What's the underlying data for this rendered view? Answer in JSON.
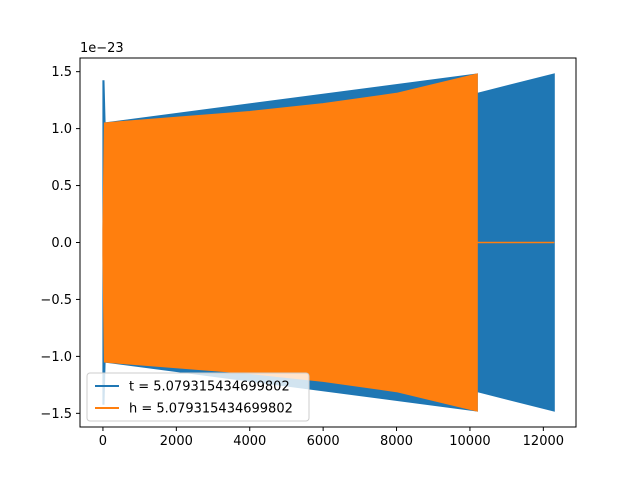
{
  "chart_data": {
    "type": "line",
    "offset_text": "1e−23",
    "xlim": [
      -625,
      12890
    ],
    "ylim": [
      -1.62,
      1.62
    ],
    "scale": "1e-23",
    "x_ticks": [
      0,
      2000,
      4000,
      6000,
      8000,
      10000,
      12000
    ],
    "x_tick_labels": [
      "0",
      "2000",
      "4000",
      "6000",
      "8000",
      "10000",
      "12000"
    ],
    "y_ticks": [
      -1.5,
      -1.0,
      -0.5,
      0.0,
      0.5,
      1.0,
      1.5
    ],
    "y_tick_labels": [
      "−1.5",
      "−1.0",
      "−0.5",
      "0.0",
      "0.5",
      "1.0",
      "1.5"
    ],
    "grid": false,
    "legend_position": "lower-left",
    "series": [
      {
        "name": "t = 5.079315434699802",
        "color": "#1f77b4",
        "envelope_upper": [
          [
            0,
            1.42
          ],
          [
            30,
            1.42
          ],
          [
            60,
            1.05
          ],
          [
            10200,
            1.48
          ],
          [
            10200,
            1.31
          ],
          [
            12300,
            1.48
          ]
        ],
        "envelope_lower": [
          [
            0,
            -1.42
          ],
          [
            30,
            -1.42
          ],
          [
            60,
            -1.05
          ],
          [
            10200,
            -1.48
          ],
          [
            10200,
            -1.31
          ],
          [
            12300,
            -1.48
          ]
        ]
      },
      {
        "name": "h = 5.079315434699802",
        "color": "#ff7f0e",
        "envelope_upper": [
          [
            0,
            0.12
          ],
          [
            40,
            1.05
          ],
          [
            2000,
            1.1
          ],
          [
            4000,
            1.15
          ],
          [
            6000,
            1.22
          ],
          [
            8000,
            1.31
          ],
          [
            10200,
            1.48
          ]
        ],
        "envelope_lower": [
          [
            0,
            -0.12
          ],
          [
            40,
            -1.05
          ],
          [
            2000,
            -1.1
          ],
          [
            4000,
            -1.15
          ],
          [
            6000,
            -1.22
          ],
          [
            8000,
            -1.31
          ],
          [
            10200,
            -1.48
          ]
        ],
        "tail": [
          [
            10200,
            0.0
          ],
          [
            12300,
            0.0
          ]
        ]
      }
    ]
  }
}
